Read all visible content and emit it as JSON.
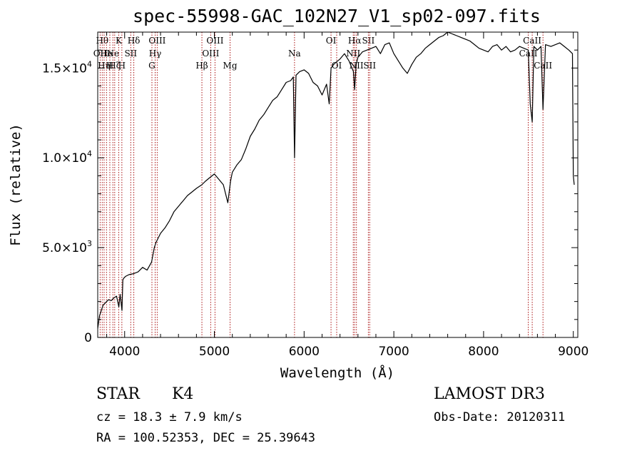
{
  "chart_data": {
    "type": "line",
    "title": "spec-55998-GAC_102N27_V1_sp02-097.fits",
    "xlabel": "Wavelength (Å)",
    "ylabel": "Flux (relative)",
    "xlim": [
      3700,
      9050
    ],
    "ylim": [
      0,
      17000
    ],
    "x_ticks": [
      {
        "value": 4000,
        "label": "4000"
      },
      {
        "value": 5000,
        "label": "5000"
      },
      {
        "value": 6000,
        "label": "6000"
      },
      {
        "value": 7000,
        "label": "7000"
      },
      {
        "value": 8000,
        "label": "8000"
      },
      {
        "value": 9000,
        "label": "9000"
      }
    ],
    "y_ticks": [
      {
        "value": 0,
        "mant": "0",
        "exp": ""
      },
      {
        "value": 5000,
        "mant": "5.0×10",
        "exp": "3"
      },
      {
        "value": 10000,
        "mant": "1.0×10",
        "exp": "4"
      },
      {
        "value": 15000,
        "mant": "1.5×10",
        "exp": "4"
      }
    ],
    "series": [
      {
        "name": "spectrum",
        "x": [
          3700,
          3720,
          3740,
          3760,
          3780,
          3800,
          3820,
          3850,
          3880,
          3910,
          3935,
          3950,
          3970,
          3980,
          3990,
          4010,
          4050,
          4100,
          4150,
          4200,
          4250,
          4300,
          4330,
          4350,
          4400,
          4450,
          4500,
          4550,
          4600,
          4650,
          4700,
          4750,
          4800,
          4860,
          4900,
          4950,
          5000,
          5050,
          5100,
          5150,
          5180,
          5200,
          5250,
          5300,
          5350,
          5400,
          5450,
          5500,
          5550,
          5600,
          5650,
          5700,
          5750,
          5800,
          5850,
          5880,
          5893,
          5910,
          5950,
          6000,
          6050,
          6100,
          6150,
          6200,
          6250,
          6280,
          6300,
          6330,
          6350,
          6400,
          6450,
          6500,
          6550,
          6563,
          6580,
          6600,
          6650,
          6700,
          6750,
          6800,
          6850,
          6900,
          6950,
          7000,
          7050,
          7100,
          7150,
          7200,
          7250,
          7300,
          7350,
          7400,
          7450,
          7500,
          7550,
          7600,
          7650,
          7700,
          7750,
          7800,
          7850,
          7900,
          7950,
          8000,
          8050,
          8100,
          8150,
          8200,
          8250,
          8300,
          8350,
          8400,
          8450,
          8498,
          8520,
          8542,
          8560,
          8600,
          8640,
          8662,
          8690,
          8750,
          8800,
          8850,
          8900,
          8950,
          8990,
          9000,
          9010
        ],
        "values": [
          500,
          1200,
          1500,
          1800,
          1900,
          2000,
          2100,
          2050,
          2200,
          2300,
          1700,
          2400,
          1500,
          3200,
          3300,
          3400,
          3500,
          3550,
          3650,
          3900,
          3750,
          4200,
          5000,
          5300,
          5800,
          6100,
          6500,
          7000,
          7300,
          7600,
          7900,
          8100,
          8300,
          8500,
          8700,
          8900,
          9100,
          8800,
          8500,
          7500,
          8700,
          9200,
          9600,
          9900,
          10500,
          11200,
          11600,
          12100,
          12400,
          12800,
          13200,
          13400,
          13800,
          14200,
          14300,
          14500,
          10000,
          14600,
          14800,
          14900,
          14700,
          14200,
          14000,
          13500,
          14100,
          13000,
          15000,
          15200,
          15300,
          15500,
          15800,
          15400,
          14800,
          13800,
          15200,
          15600,
          15900,
          16000,
          16100,
          16200,
          15800,
          16300,
          16400,
          15800,
          15400,
          15000,
          14700,
          15200,
          15600,
          15800,
          16100,
          16300,
          16500,
          16700,
          16800,
          17000,
          16900,
          16800,
          16700,
          16600,
          16500,
          16300,
          16100,
          16000,
          15900,
          16200,
          16300,
          16000,
          16200,
          15900,
          16000,
          16200,
          16100,
          16000,
          13000,
          12000,
          16200,
          16000,
          16200,
          12700,
          16300,
          16200,
          16300,
          16400,
          16200,
          16000,
          15800,
          9000,
          8500
        ]
      }
    ],
    "lines": [
      {
        "wl": 3727,
        "label": "OII",
        "row": 1
      },
      {
        "wl": 3750,
        "label": "Hθ",
        "row": 0
      },
      {
        "wl": 3771,
        "label": "Hη",
        "row": 2
      },
      {
        "wl": 3798,
        "label": "He",
        "row": 1
      },
      {
        "wl": 3835,
        "label": "H",
        "row": 2
      },
      {
        "wl": 3869,
        "label": "Ne",
        "row": 1
      },
      {
        "wl": 3889,
        "label": "Hζ",
        "row": 2
      },
      {
        "wl": 3934,
        "label": "K",
        "row": 0
      },
      {
        "wl": 3969,
        "label": "H",
        "row": 2
      },
      {
        "wl": 4068,
        "label": "SII",
        "row": 1
      },
      {
        "wl": 4102,
        "label": "Hδ",
        "row": 0
      },
      {
        "wl": 4304,
        "label": "G",
        "row": 2
      },
      {
        "wl": 4340,
        "label": "Hγ",
        "row": 1
      },
      {
        "wl": 4363,
        "label": "OIII",
        "row": 0
      },
      {
        "wl": 4861,
        "label": "Hβ",
        "row": 2
      },
      {
        "wl": 4959,
        "label": "OIII",
        "row": 1
      },
      {
        "wl": 5007,
        "label": "OIII",
        "row": 0
      },
      {
        "wl": 5175,
        "label": "Mg",
        "row": 2
      },
      {
        "wl": 5893,
        "label": "Na",
        "row": 1
      },
      {
        "wl": 6300,
        "label": "OI",
        "row": 0
      },
      {
        "wl": 6363,
        "label": "OI",
        "row": 2
      },
      {
        "wl": 6548,
        "label": "NII",
        "row": 1
      },
      {
        "wl": 6563,
        "label": "Hα",
        "row": 0
      },
      {
        "wl": 6583,
        "label": "NII",
        "row": 2
      },
      {
        "wl": 6716,
        "label": "SII",
        "row": 0
      },
      {
        "wl": 6731,
        "label": "SII",
        "row": 2
      },
      {
        "wl": 8498,
        "label": "CaII",
        "row": 1
      },
      {
        "wl": 8542,
        "label": "CaII",
        "row": 0
      },
      {
        "wl": 8662,
        "label": "CaII",
        "row": 2
      }
    ]
  },
  "info": {
    "class": "STAR",
    "subclass": "K4",
    "cz": "cz = 18.3 ± 7.9 km/s",
    "radec": "RA = 100.52353, DEC =  25.39643",
    "survey": "LAMOST DR3",
    "obsdate": "Obs-Date: 20120311"
  },
  "colors": {
    "spectrum": "#000000",
    "lines": "#aa1111"
  }
}
